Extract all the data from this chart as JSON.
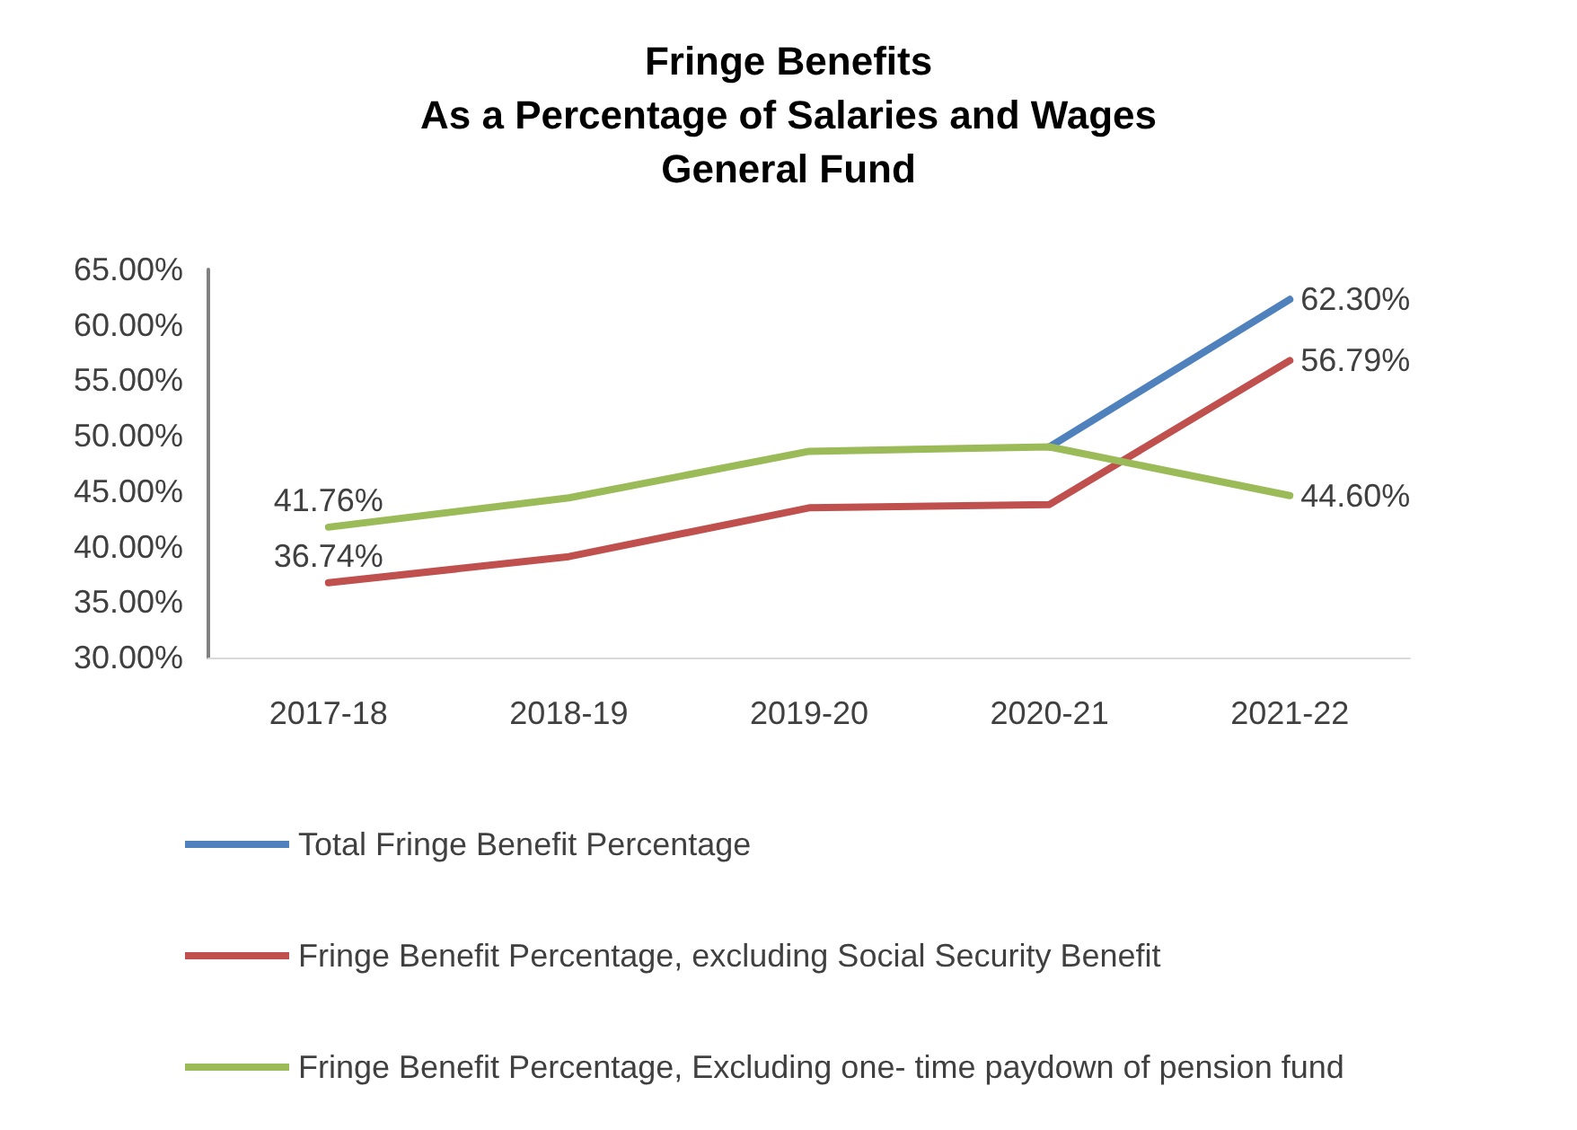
{
  "chart_data": {
    "type": "line",
    "title": "Fringe Benefits\nAs a Percentage of Salaries and Wages\nGeneral Fund",
    "categories": [
      "2017-18",
      "2018-19",
      "2019-20",
      "2020-21",
      "2021-22"
    ],
    "series": [
      {
        "name": "Total Fringe Benefit Percentage",
        "color": "#4f81bd",
        "values": [
          null,
          null,
          null,
          49.0,
          62.3
        ],
        "value_labels": [
          null,
          null,
          null,
          null,
          "62.30%"
        ]
      },
      {
        "name": "Fringe Benefit Percentage, excluding Social Security Benefit",
        "color": "#c0504d",
        "values": [
          36.74,
          39.1,
          43.5,
          43.8,
          56.79
        ],
        "value_labels": [
          "36.74%",
          null,
          null,
          null,
          "56.79%"
        ]
      },
      {
        "name": "Fringe Benefit Percentage, Excluding one- time paydown of pension fund",
        "color": "#9bbb59",
        "values": [
          41.76,
          44.4,
          48.6,
          49.0,
          44.6
        ],
        "value_labels": [
          "41.76%",
          null,
          null,
          null,
          "44.60%"
        ]
      }
    ],
    "ylim": [
      30,
      65
    ],
    "yticks": [
      {
        "value": 30,
        "label": "30.00%"
      },
      {
        "value": 35,
        "label": "35.00%"
      },
      {
        "value": 40,
        "label": "40.00%"
      },
      {
        "value": 45,
        "label": "45.00%"
      },
      {
        "value": 50,
        "label": "50.00%"
      },
      {
        "value": 55,
        "label": "55.00%"
      },
      {
        "value": 60,
        "label": "60.00%"
      },
      {
        "value": 65,
        "label": "65.00%"
      }
    ],
    "grid": false,
    "legend": "bottom",
    "marker": "none",
    "line_style": "solid"
  }
}
